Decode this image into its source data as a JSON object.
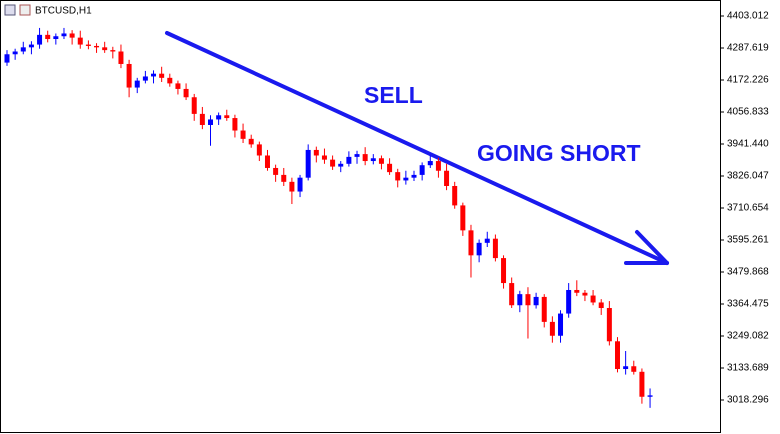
{
  "chart_data": {
    "type": "candlestick",
    "title": "BTCUSD,H1",
    "annotations": [
      "SELL",
      "GOING SHORT"
    ],
    "up_color": "#0000ff",
    "down_color": "#ff0000",
    "annotation_color": "#1a1aee",
    "ylim": [
      2902.9,
      4460.7
    ],
    "yticks": [
      4403.012,
      4287.619,
      4172.226,
      4056.833,
      {
        "value": 3941.44,
        "label": "3941.440"
      },
      3826.047,
      3710.654,
      3595.261,
      3479.868,
      3364.475,
      3249.082,
      3133.689,
      3018.296
    ],
    "open": [
      4235,
      4265,
      4275,
      4290,
      4300,
      4335,
      4320,
      4330,
      4340,
      4325,
      4300,
      4295,
      4290,
      4280,
      4275,
      4230,
      4145,
      4170,
      4185,
      4195,
      4180,
      4160,
      4140,
      4110,
      4050,
      4010,
      4030,
      4045,
      4035,
      3990,
      3960,
      3940,
      3900,
      3855,
      3830,
      3805,
      3770,
      3820,
      3920,
      3900,
      3885,
      3860,
      3870,
      3895,
      3905,
      3880,
      3890,
      3870,
      3840,
      3810,
      3820,
      3830,
      3865,
      3880,
      3845,
      3790,
      3720,
      3630,
      3540,
      3585,
      3600,
      3530,
      3440,
      3360,
      3400,
      3360,
      3390,
      3300,
      3250,
      3330,
      3415,
      3405,
      3395,
      3370,
      3350,
      3230,
      3130,
      3140,
      3120,
      3030
    ],
    "high": [
      4280,
      4285,
      4310,
      4312,
      4360,
      4350,
      4340,
      4360,
      4352,
      4350,
      4315,
      4305,
      4310,
      4292,
      4300,
      4245,
      4180,
      4205,
      4207,
      4220,
      4195,
      4170,
      4160,
      4122,
      4075,
      4045,
      4055,
      4065,
      4047,
      4015,
      3975,
      3950,
      3920,
      3867,
      3855,
      3820,
      3830,
      3940,
      3932,
      3925,
      3900,
      3880,
      3915,
      3917,
      3930,
      3905,
      3900,
      3890,
      3852,
      3845,
      3845,
      3875,
      3900,
      3892,
      3870,
      3805,
      3730,
      3650,
      3597,
      3625,
      3615,
      3540,
      3460,
      3412,
      3425,
      3405,
      3400,
      3320,
      3342,
      3440,
      3450,
      3415,
      3415,
      3382,
      3375,
      3245,
      3195,
      3160,
      3132,
      3060
    ],
    "low": [
      4223,
      4245,
      4265,
      4265,
      4285,
      4308,
      4300,
      4320,
      4300,
      4285,
      4283,
      4270,
      4270,
      4250,
      4215,
      4110,
      4125,
      4160,
      4160,
      4165,
      4148,
      4120,
      4100,
      4025,
      3995,
      3935,
      4010,
      4025,
      3965,
      3945,
      3928,
      3880,
      3845,
      3805,
      3790,
      3725,
      3750,
      3810,
      3875,
      3870,
      3848,
      3840,
      3860,
      3870,
      3865,
      3868,
      3850,
      3830,
      3785,
      3795,
      3808,
      3810,
      3855,
      3820,
      3775,
      3708,
      3610,
      3460,
      3515,
      3570,
      3518,
      3420,
      3350,
      3335,
      3240,
      3348,
      3280,
      3225,
      3225,
      3315,
      3393,
      3375,
      3360,
      3325,
      3215,
      3118,
      3110,
      3110,
      3005,
      2990
    ],
    "close": [
      4265,
      4275,
      4290,
      4300,
      4335,
      4320,
      4330,
      4340,
      4325,
      4300,
      4295,
      4290,
      4280,
      4275,
      4230,
      4145,
      4170,
      4185,
      4195,
      4180,
      4160,
      4140,
      4110,
      4050,
      4010,
      4030,
      4045,
      4035,
      3990,
      3960,
      3940,
      3900,
      3855,
      3830,
      3805,
      3770,
      3820,
      3920,
      3900,
      3885,
      3860,
      3870,
      3895,
      3905,
      3880,
      3890,
      3870,
      3840,
      3810,
      3820,
      3830,
      3865,
      3880,
      3845,
      3790,
      3720,
      3630,
      3540,
      3585,
      3600,
      3530,
      3440,
      3360,
      3400,
      3360,
      3390,
      3300,
      3250,
      3330,
      3415,
      3405,
      3395,
      3370,
      3350,
      3230,
      3130,
      3140,
      3120,
      3030,
      3035
    ]
  }
}
